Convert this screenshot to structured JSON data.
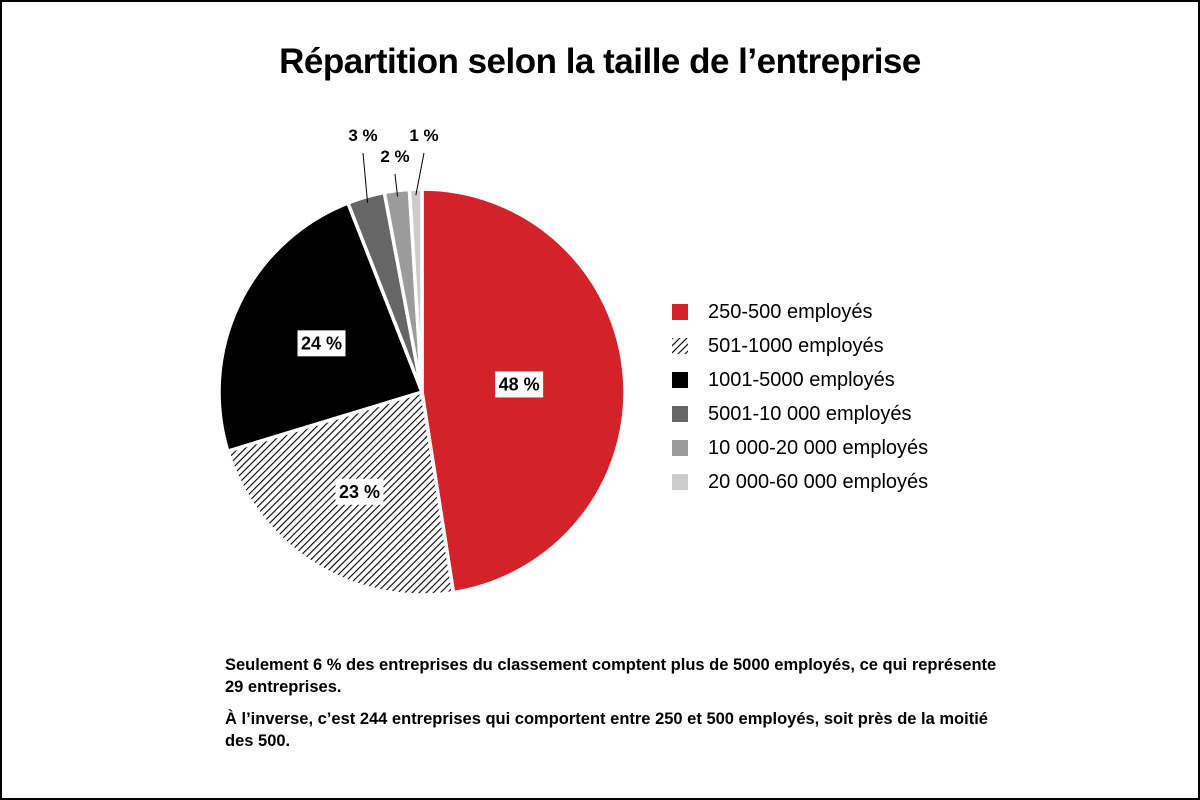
{
  "title": "Répartition selon la taille de l’entreprise",
  "chart_data": {
    "type": "pie",
    "title": "Répartition selon la taille de l’entreprise",
    "categories": [
      "250-500 employés",
      "501-1000 employés",
      "1001-5000 employés",
      "5001-10 000 employés",
      "10 000-20 000 employés",
      "20 000-60 000 employés"
    ],
    "values": [
      48,
      23,
      24,
      3,
      2,
      1
    ],
    "labels": [
      "48 %",
      "23 %",
      "24 %",
      "3 %",
      "2 %",
      "1 %"
    ],
    "colors": [
      "#d2232a",
      "hatched",
      "#000000",
      "#666666",
      "#9b9b9b",
      "#cccccc"
    ],
    "legend_position": "right"
  },
  "notes": [
    "Seulement 6 % des entreprises du classement comptent plus de 5000 employés, ce qui représente 29 entreprises.",
    "À l’inverse, c’est 244 entreprises qui comportent entre 250 et 500 employés, soit près de la moitié des 500."
  ]
}
